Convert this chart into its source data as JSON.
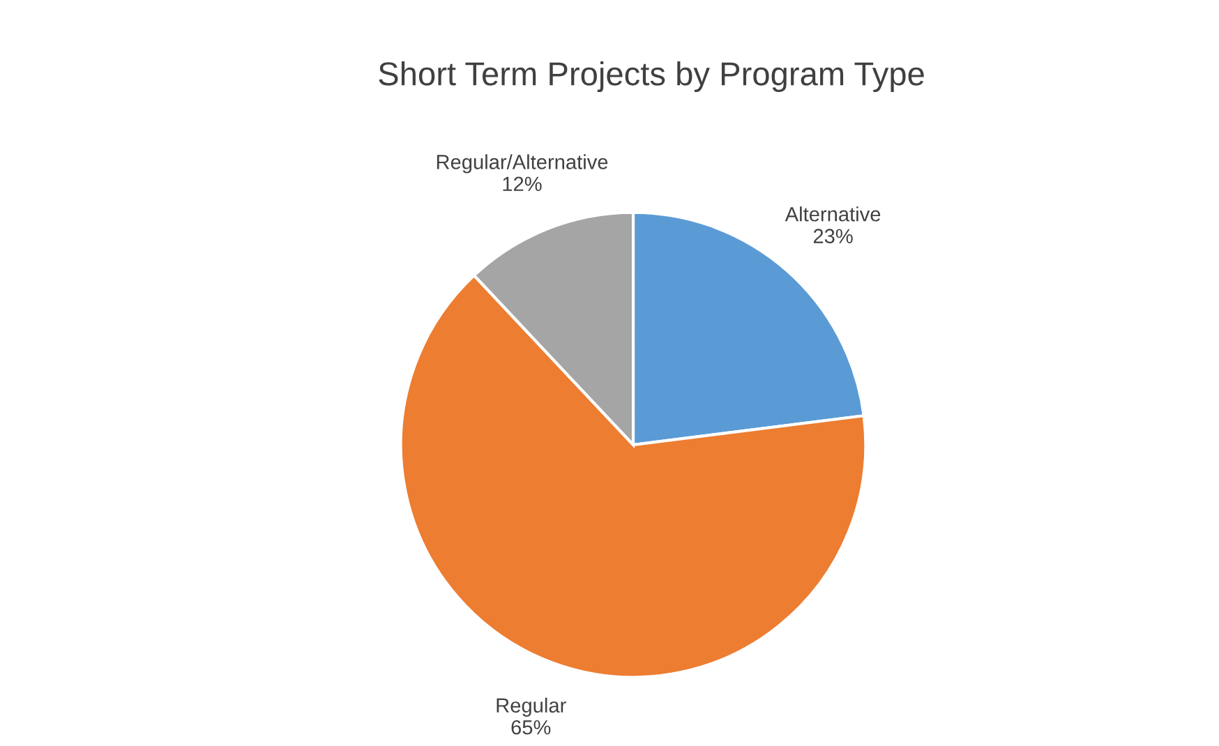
{
  "chart_data": {
    "type": "pie",
    "title": "Short Term Projects by Program Type",
    "categories": [
      "Alternative",
      "Regular",
      "Regular/Alternative"
    ],
    "values": [
      23,
      65,
      12
    ],
    "colors": [
      "#5b9bd5",
      "#ed7d31",
      "#a5a5a5"
    ],
    "value_labels": [
      "23%",
      "65%",
      "12%"
    ],
    "legend": false
  }
}
